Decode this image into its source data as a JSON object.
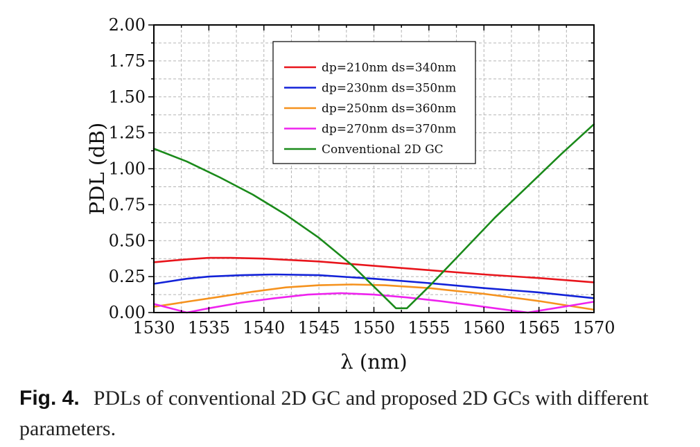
{
  "caption": {
    "label": "Fig. 4.",
    "text": "PDLs of conventional 2D GC and proposed 2D GCs with different parameters."
  },
  "chart_data": {
    "type": "line",
    "xlabel": "λ (nm)",
    "ylabel": "PDL (dB)",
    "xlim": [
      1530,
      1570
    ],
    "ylim": [
      0,
      2
    ],
    "xticks": [
      1530,
      1535,
      1540,
      1545,
      1550,
      1555,
      1560,
      1565,
      1570
    ],
    "yticks": [
      "0.00",
      "0.25",
      "0.50",
      "0.75",
      "1.00",
      "1.25",
      "1.50",
      "1.75",
      "2.00"
    ],
    "grid": true,
    "legend_position": "top-center",
    "series": [
      {
        "name": "dp=210nm ds=340nm",
        "color": "#e8141b",
        "x": [
          1530,
          1533,
          1535,
          1537,
          1540,
          1545,
          1550,
          1555,
          1560,
          1565,
          1570
        ],
        "y": [
          0.35,
          0.37,
          0.38,
          0.38,
          0.375,
          0.355,
          0.325,
          0.295,
          0.265,
          0.24,
          0.21
        ]
      },
      {
        "name": "dp=230nm ds=350nm",
        "color": "#1222d8",
        "x": [
          1530,
          1533,
          1535,
          1538,
          1541,
          1545,
          1550,
          1555,
          1560,
          1565,
          1570
        ],
        "y": [
          0.2,
          0.235,
          0.25,
          0.26,
          0.265,
          0.26,
          0.235,
          0.205,
          0.17,
          0.14,
          0.1
        ]
      },
      {
        "name": "dp=250nm ds=360nm",
        "color": "#f5921e",
        "x": [
          1530,
          1533,
          1536,
          1539,
          1542,
          1545,
          1548,
          1551,
          1555,
          1560,
          1565,
          1570
        ],
        "y": [
          0.04,
          0.075,
          0.11,
          0.145,
          0.175,
          0.19,
          0.195,
          0.19,
          0.17,
          0.13,
          0.08,
          0.02
        ]
      },
      {
        "name": "dp=270nm ds=370nm",
        "color": "#ee22ee",
        "x": [
          1530,
          1531.5,
          1533,
          1535,
          1538,
          1541,
          1544,
          1547,
          1550,
          1553,
          1556,
          1559,
          1562,
          1564,
          1566,
          1568,
          1570
        ],
        "y": [
          0.06,
          0.03,
          0.0,
          0.03,
          0.07,
          0.1,
          0.125,
          0.135,
          0.125,
          0.105,
          0.08,
          0.05,
          0.02,
          0.0,
          0.025,
          0.05,
          0.075
        ]
      },
      {
        "name": "Conventional 2D GC",
        "color": "#1a8a1a",
        "x": [
          1530,
          1533,
          1536,
          1539,
          1542,
          1545,
          1548,
          1550,
          1552,
          1553,
          1555,
          1558,
          1561,
          1564,
          1567,
          1570
        ],
        "y": [
          1.14,
          1.05,
          0.94,
          0.82,
          0.68,
          0.52,
          0.33,
          0.18,
          0.03,
          0.03,
          0.18,
          0.42,
          0.66,
          0.88,
          1.1,
          1.31
        ]
      }
    ]
  }
}
